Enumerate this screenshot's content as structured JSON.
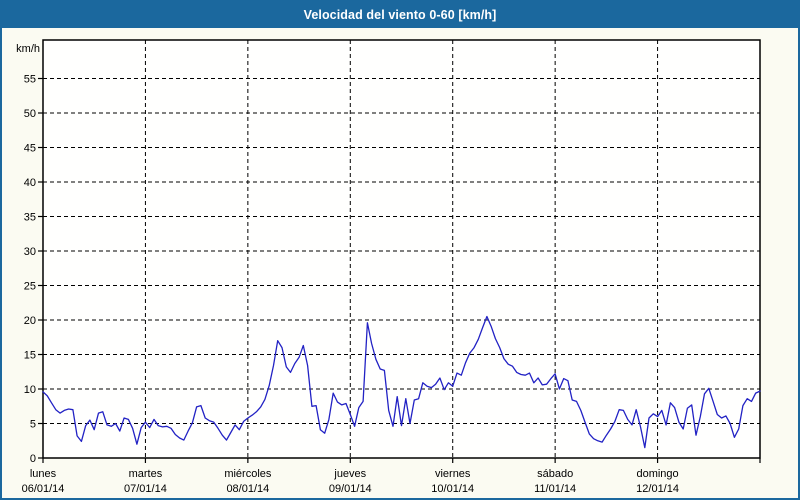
{
  "window": {
    "title": "Velocidad del viento 0-60 [km/h]"
  },
  "colors": {
    "titlebar_bg": "#1b689e",
    "titlebar_text": "#ffffff",
    "window_border": "#1b689e",
    "window_bg": "#fbfbf2",
    "plot_bg": "#fffffe",
    "axis": "#000000",
    "grid": "#000000",
    "line": "#2222c4"
  },
  "chart_data": {
    "type": "line",
    "title": "Velocidad del viento 0-60 [km/h]",
    "ylabel": "km/h",
    "xlabel": "",
    "ylim": [
      0,
      60
    ],
    "y_ticks": [
      0,
      5,
      10,
      15,
      20,
      25,
      30,
      35,
      40,
      45,
      50,
      55
    ],
    "grid": "dashed",
    "legend_position": "none",
    "x_days": [
      {
        "name": "lunes",
        "date": "06/01/14"
      },
      {
        "name": "martes",
        "date": "07/01/14"
      },
      {
        "name": "miércoles",
        "date": "08/01/14"
      },
      {
        "name": "jueves",
        "date": "09/01/14"
      },
      {
        "name": "viernes",
        "date": "10/01/14"
      },
      {
        "name": "sábado",
        "date": "11/01/14"
      },
      {
        "name": "domingo",
        "date": "12/01/14"
      }
    ],
    "series": [
      {
        "name": "Velocidad del viento",
        "unit": "km/h",
        "color": "#2222c4",
        "samples_per_day": 24,
        "values": [
          9.6,
          9.0,
          8.0,
          7.0,
          6.5,
          6.9,
          7.1,
          7.0,
          3.2,
          2.4,
          4.7,
          5.5,
          4.1,
          6.5,
          6.7,
          4.8,
          4.6,
          5.0,
          3.9,
          5.8,
          5.6,
          4.3,
          2.0,
          4.4,
          5.2,
          4.4,
          5.6,
          4.7,
          4.5,
          4.6,
          4.3,
          3.4,
          2.9,
          2.6,
          3.9,
          5.1,
          7.4,
          7.6,
          5.8,
          5.4,
          5.2,
          4.3,
          3.3,
          2.6,
          3.7,
          4.8,
          4.1,
          5.3,
          5.8,
          6.2,
          6.7,
          7.4,
          8.5,
          10.5,
          13.4,
          17.0,
          16.0,
          13.2,
          12.4,
          13.7,
          14.6,
          16.3,
          13.4,
          7.5,
          7.6,
          4.1,
          3.6,
          5.6,
          9.4,
          8.1,
          7.7,
          7.9,
          6.3,
          4.6,
          7.3,
          8.2,
          19.6,
          16.6,
          14.3,
          12.9,
          12.7,
          6.9,
          4.6,
          8.9,
          4.7,
          8.6,
          5.0,
          8.4,
          8.6,
          10.9,
          10.4,
          10.2,
          10.7,
          11.6,
          9.9,
          10.9,
          10.4,
          12.3,
          12.0,
          13.8,
          15.2,
          16.0,
          17.2,
          18.9,
          20.5,
          19.1,
          17.3,
          16.0,
          14.4,
          13.6,
          13.3,
          12.4,
          12.1,
          12.0,
          12.3,
          10.9,
          11.6,
          10.6,
          10.7,
          11.5,
          12.2,
          10.0,
          11.5,
          11.2,
          8.4,
          8.2,
          6.9,
          5.2,
          3.5,
          2.8,
          2.5,
          2.3,
          3.3,
          4.2,
          5.3,
          7.0,
          6.9,
          5.6,
          4.8,
          7.0,
          4.5,
          1.5,
          5.8,
          6.4,
          6.0,
          6.9,
          4.8,
          8.0,
          7.3,
          5.2,
          4.2,
          7.2,
          7.7,
          3.3,
          6.0,
          9.3,
          10.1,
          8.2,
          6.3,
          5.8,
          6.1,
          5.0,
          3.0,
          4.2,
          7.6,
          8.6,
          8.2,
          9.4,
          9.7
        ]
      }
    ]
  }
}
